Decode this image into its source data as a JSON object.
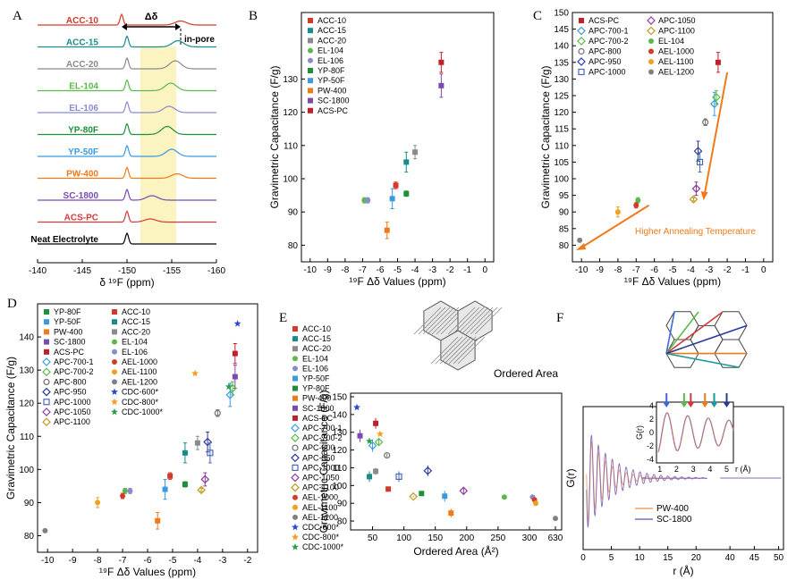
{
  "panels": {
    "A": {
      "letter": "A",
      "delta_label": "Δδ",
      "inpore_label": "in-pore",
      "xlabel": "δ ¹⁹F (ppm)",
      "xticks": [
        "-140",
        "-145",
        "-150",
        "-155",
        "-160"
      ],
      "traces": [
        {
          "label": "ACC-10",
          "color": "#d43a2a",
          "peak": -149.4,
          "inpore": -156.0,
          "amp": 0.45
        },
        {
          "label": "ACC-15",
          "color": "#1a8a8a",
          "peak": -150.0,
          "inpore": -155.7,
          "amp": 0.7
        },
        {
          "label": "ACC-20",
          "color": "#8a8a8a",
          "peak": -150.0,
          "inpore": -155.4,
          "amp": 0.9
        },
        {
          "label": "EL-104",
          "color": "#5cb84a",
          "peak": -150.0,
          "inpore": -154.9,
          "amp": 0.85
        },
        {
          "label": "EL-106",
          "color": "#8a8ad0",
          "peak": -150.0,
          "inpore": -154.7,
          "amp": 0.7
        },
        {
          "label": "YP-80F",
          "color": "#1e8f3a",
          "peak": -150.0,
          "inpore": -154.5,
          "amp": 0.9
        },
        {
          "label": "YP-50F",
          "color": "#3a9ae0",
          "peak": -150.0,
          "inpore": -155.0,
          "amp": 0.8
        },
        {
          "label": "PW-400",
          "color": "#f07a1a",
          "peak": -150.0,
          "inpore": -155.6,
          "amp": 0.5
        },
        {
          "label": "SC-1800",
          "color": "#7a4ab0",
          "peak": -150.0,
          "inpore": -152.8,
          "amp": 0.5
        },
        {
          "label": "ACS-PC",
          "color": "#d43a3a",
          "peak": -150.0,
          "inpore": -152.6,
          "amp": 0.35
        },
        {
          "label": "Neat Electrolyte",
          "color": "#000000",
          "peak": -150.0,
          "inpore": -150.0,
          "amp": 0
        }
      ]
    },
    "B": {
      "letter": "B",
      "xlabel": "¹⁹F Δδ Values (ppm)",
      "ylabel": "Gravimetric Capacitance (F/g)",
      "xticks": [
        "-10",
        "-9",
        "-8",
        "-7",
        "-6",
        "-5",
        "-4",
        "-3",
        "-2",
        "-1",
        "0"
      ],
      "yticks": [
        "80",
        "90",
        "100",
        "110",
        "120",
        "130"
      ]
    },
    "C": {
      "letter": "C",
      "xlabel": "¹⁹F Δδ Values (ppm)",
      "ylabel": "Gravimetric Capacitance (F/g)",
      "xticks": [
        "-10",
        "-9",
        "-8",
        "-7",
        "-6",
        "-5",
        "-4",
        "-3",
        "-2",
        "-1",
        "0"
      ],
      "yticks": [
        "80",
        "85",
        "90",
        "95",
        "100",
        "105",
        "110",
        "115",
        "120",
        "125",
        "130",
        "135",
        "140",
        "145",
        "150"
      ],
      "annotation": "Higher Annealing Temperature"
    },
    "D": {
      "letter": "D",
      "xlabel": "¹⁹F Δδ Values (ppm)",
      "ylabel": "Gravimetric Capacitance (F/g)",
      "xticks": [
        "-10",
        "-9",
        "-8",
        "-7",
        "-6",
        "-5",
        "-4",
        "-3",
        "-2"
      ],
      "yticks": [
        "80",
        "90",
        "100",
        "110",
        "120",
        "130",
        "140"
      ]
    },
    "E": {
      "letter": "E",
      "xlabel": "Ordered Area (Å²)",
      "ylabel": "Gravimetric Capacitance (F/g)",
      "xticks": [
        "50",
        "100",
        "150",
        "200",
        "250",
        "300",
        "630"
      ],
      "yticks": [
        "80",
        "90",
        "100",
        "110",
        "120",
        "130",
        "140",
        "150"
      ],
      "inset_label": "Ordered Area"
    },
    "F": {
      "letter": "F",
      "xlabel": "r (Å)",
      "ylabel": "G(r)",
      "xticks": [
        "0",
        "5",
        "10",
        "15",
        "20",
        "40",
        "45",
        "50"
      ],
      "yticks": [
        "-4",
        "-2",
        "0",
        "2",
        "4"
      ],
      "inset_xlabel": "r (Å)",
      "inset_ylabel": "G(r)",
      "inset_xticks": [
        "1",
        "2",
        "3",
        "4",
        "5"
      ],
      "inset_yticks": [
        "-4",
        "-2",
        "0",
        "2",
        "4"
      ],
      "legend": [
        {
          "label": "PW-400",
          "color": "#f5a050"
        },
        {
          "label": "SC-1800",
          "color": "#8a6ab8"
        }
      ],
      "arrow_colors": [
        "#3a6ad8",
        "#5cb84a",
        "#d43a3a",
        "#f07a1a",
        "#1a9a9a",
        "#2a3a9a"
      ]
    }
  },
  "chart_data": [
    {
      "type": "line",
      "panel": "A",
      "xlabel": "δ ¹⁹F (ppm)",
      "xlim": [
        -140,
        -160
      ],
      "series": [
        {
          "name": "ACC-10",
          "peak_ppm": -149.4,
          "inpore_ppm": -156.0
        },
        {
          "name": "ACC-15",
          "peak_ppm": -150.0,
          "inpore_ppm": -155.7
        },
        {
          "name": "ACC-20",
          "peak_ppm": -150.0,
          "inpore_ppm": -155.4
        },
        {
          "name": "EL-104",
          "peak_ppm": -150.0,
          "inpore_ppm": -154.9
        },
        {
          "name": "EL-106",
          "peak_ppm": -150.0,
          "inpore_ppm": -154.7
        },
        {
          "name": "YP-80F",
          "peak_ppm": -150.0,
          "inpore_ppm": -154.5
        },
        {
          "name": "YP-50F",
          "peak_ppm": -150.0,
          "inpore_ppm": -155.0
        },
        {
          "name": "PW-400",
          "peak_ppm": -150.0,
          "inpore_ppm": -155.6
        },
        {
          "name": "SC-1800",
          "peak_ppm": -150.0,
          "inpore_ppm": -152.8
        },
        {
          "name": "ACS-PC",
          "peak_ppm": -150.0,
          "inpore_ppm": -152.6
        },
        {
          "name": "Neat Electrolyte",
          "peak_ppm": -150.0
        }
      ]
    },
    {
      "type": "scatter",
      "panel": "B",
      "xlabel": "¹⁹F Δδ Values (ppm)",
      "ylabel": "Gravimetric Capacitance (F/g)",
      "xlim": [
        -10.5,
        0.5
      ],
      "ylim": [
        75,
        150
      ],
      "series": [
        {
          "name": "ACC-10",
          "x": -5.1,
          "y": 98,
          "err": 1,
          "color": "#d43a2a",
          "marker": "sq"
        },
        {
          "name": "ACC-15",
          "x": -4.5,
          "y": 105,
          "err": 3,
          "color": "#1a8a8a",
          "marker": "sq"
        },
        {
          "name": "ACC-20",
          "x": -4.0,
          "y": 108,
          "err": 2,
          "color": "#8a8a8a",
          "marker": "sq"
        },
        {
          "name": "EL-104",
          "x": -6.9,
          "y": 93.5,
          "err": 0.8,
          "color": "#5cb84a",
          "marker": "ci"
        },
        {
          "name": "EL-106",
          "x": -6.7,
          "y": 93.5,
          "err": 0.8,
          "color": "#8a8ad0",
          "marker": "ci"
        },
        {
          "name": "YP-80F",
          "x": -4.5,
          "y": 95.5,
          "err": 0.8,
          "color": "#1e8f3a",
          "marker": "sq"
        },
        {
          "name": "YP-50F",
          "x": -5.3,
          "y": 94,
          "err": 3,
          "color": "#3a9ae0",
          "marker": "sq"
        },
        {
          "name": "PW-400",
          "x": -5.6,
          "y": 84.5,
          "err": 2.5,
          "color": "#f07a1a",
          "marker": "sq"
        },
        {
          "name": "SC-1800",
          "x": -2.5,
          "y": 128,
          "err": 3.5,
          "color": "#7a4ab0",
          "marker": "sq"
        },
        {
          "name": "ACS-PC",
          "x": -2.5,
          "y": 135,
          "err": 3,
          "color": "#c0202a",
          "marker": "sq"
        }
      ]
    },
    {
      "type": "scatter",
      "panel": "C",
      "xlabel": "¹⁹F Δδ Values (ppm)",
      "ylabel": "Gravimetric Capacitance (F/g)",
      "xlim": [
        -10.5,
        0.5
      ],
      "ylim": [
        75,
        150
      ],
      "series": [
        {
          "name": "ACS-PC",
          "x": -2.5,
          "y": 135,
          "err": 3,
          "color": "#c0202a",
          "marker": "sq"
        },
        {
          "name": "APC-700-1",
          "x": -2.7,
          "y": 122.5,
          "err": 3.5,
          "color": "#3a9ae0",
          "marker": "od"
        },
        {
          "name": "APC-700-2",
          "x": -2.6,
          "y": 124.5,
          "err": 2,
          "color": "#5cb84a",
          "marker": "od"
        },
        {
          "name": "APC-800",
          "x": -3.2,
          "y": 117,
          "err": 1,
          "color": "#707070",
          "marker": "oc"
        },
        {
          "name": "APC-950",
          "x": -3.6,
          "y": 108.3,
          "err": 3,
          "color": "#2a3aa0",
          "marker": "od"
        },
        {
          "name": "APC-1000",
          "x": -3.5,
          "y": 105,
          "err": 3,
          "color": "#4a6ab8",
          "marker": "os"
        },
        {
          "name": "APC-1050",
          "x": -3.7,
          "y": 97,
          "err": 2,
          "color": "#8a3aa0",
          "marker": "od"
        },
        {
          "name": "APC-1100",
          "x": -3.85,
          "y": 93.8,
          "err": 0.5,
          "color": "#c09a20",
          "marker": "od"
        },
        {
          "name": "EL-104",
          "x": -6.9,
          "y": 93.5,
          "err": 0.8,
          "color": "#5cb84a",
          "marker": "ci"
        },
        {
          "name": "AEL-1000",
          "x": -7.0,
          "y": 92,
          "err": 0.8,
          "color": "#d43a2a",
          "marker": "ci"
        },
        {
          "name": "AEL-1100",
          "x": -8.0,
          "y": 90,
          "err": 1.5,
          "color": "#f0a020",
          "marker": "ci"
        },
        {
          "name": "AEL-1200",
          "x": -10.1,
          "y": 81.5,
          "err": 0.5,
          "color": "#808080",
          "marker": "ci"
        }
      ]
    },
    {
      "type": "scatter",
      "panel": "D",
      "xlabel": "¹⁹F Δδ Values (ppm)",
      "ylabel": "Gravimetric Capacitance (F/g)",
      "xlim": [
        -10.4,
        -1.6
      ],
      "ylim": [
        75,
        150
      ],
      "series": [
        {
          "name": "YP-80F",
          "x": -4.5,
          "y": 95.5,
          "err": 0.8,
          "color": "#1e8f3a",
          "marker": "sq"
        },
        {
          "name": "YP-50F",
          "x": -5.3,
          "y": 94,
          "err": 3,
          "color": "#3a9ae0",
          "marker": "sq"
        },
        {
          "name": "PW-400",
          "x": -5.6,
          "y": 84.5,
          "err": 2.5,
          "color": "#f07a1a",
          "marker": "sq"
        },
        {
          "name": "SC-1800",
          "x": -2.5,
          "y": 128,
          "err": 3.5,
          "color": "#7a4ab0",
          "marker": "sq"
        },
        {
          "name": "ACS-PC",
          "x": -2.5,
          "y": 135,
          "err": 3,
          "color": "#c0202a",
          "marker": "sq"
        },
        {
          "name": "APC-700-1",
          "x": -2.7,
          "y": 122.5,
          "err": 3.5,
          "color": "#3a9ae0",
          "marker": "od"
        },
        {
          "name": "APC-700-2",
          "x": -2.6,
          "y": 124.5,
          "err": 2,
          "color": "#5cb84a",
          "marker": "od"
        },
        {
          "name": "APC-800",
          "x": -3.2,
          "y": 117,
          "err": 1,
          "color": "#707070",
          "marker": "oc"
        },
        {
          "name": "APC-950",
          "x": -3.6,
          "y": 108.3,
          "err": 3,
          "color": "#2a3aa0",
          "marker": "od"
        },
        {
          "name": "APC-1000",
          "x": -3.5,
          "y": 105,
          "err": 3,
          "color": "#4a6ab8",
          "marker": "os"
        },
        {
          "name": "APC-1050",
          "x": -3.7,
          "y": 97,
          "err": 2,
          "color": "#8a3aa0",
          "marker": "od"
        },
        {
          "name": "APC-1100",
          "x": -3.85,
          "y": 93.8,
          "err": 0.5,
          "color": "#c09a20",
          "marker": "od"
        },
        {
          "name": "ACC-10",
          "x": -5.1,
          "y": 98,
          "err": 1,
          "color": "#d43a2a",
          "marker": "sq"
        },
        {
          "name": "ACC-15",
          "x": -4.5,
          "y": 105,
          "err": 3,
          "color": "#1a8a8a",
          "marker": "sq"
        },
        {
          "name": "ACC-20",
          "x": -4.0,
          "y": 108,
          "err": 2,
          "color": "#8a8a8a",
          "marker": "sq"
        },
        {
          "name": "EL-104",
          "x": -6.9,
          "y": 93.5,
          "err": 0.8,
          "color": "#5cb84a",
          "marker": "ci"
        },
        {
          "name": "EL-106",
          "x": -6.7,
          "y": 93.5,
          "err": 0.8,
          "color": "#8a8ad0",
          "marker": "ci"
        },
        {
          "name": "AEL-1000",
          "x": -7.0,
          "y": 92,
          "err": 0.8,
          "color": "#d43a2a",
          "marker": "ci"
        },
        {
          "name": "AEL-1100",
          "x": -8.0,
          "y": 90,
          "err": 1.5,
          "color": "#f0a020",
          "marker": "ci"
        },
        {
          "name": "AEL-1200",
          "x": -10.1,
          "y": 81.5,
          "err": 0.5,
          "color": "#808080",
          "marker": "ci"
        },
        {
          "name": "CDC-600*",
          "x": -2.4,
          "y": 144,
          "err": 0,
          "color": "#2a4ad0",
          "marker": "st"
        },
        {
          "name": "CDC-800*",
          "x": -4.1,
          "y": 129,
          "err": 0,
          "color": "#f0a020",
          "marker": "st"
        },
        {
          "name": "CDC-1000*",
          "x": -2.75,
          "y": 125,
          "err": 0,
          "color": "#2aa04a",
          "marker": "st"
        }
      ]
    },
    {
      "type": "scatter",
      "panel": "E",
      "xlabel": "Ordered Area (Å²)",
      "ylabel": "Gravimetric Capacitance (F/g)",
      "ylim": [
        75,
        152
      ],
      "series": [
        {
          "name": "ACC-10",
          "x": 75,
          "y": 98,
          "err": 1,
          "color": "#d43a2a",
          "marker": "sq"
        },
        {
          "name": "ACC-15",
          "x": 45,
          "y": 105,
          "err": 3,
          "color": "#1a8a8a",
          "marker": "sq"
        },
        {
          "name": "ACC-20",
          "x": 55,
          "y": 108,
          "err": 2,
          "color": "#8a8a8a",
          "marker": "sq"
        },
        {
          "name": "EL-104",
          "x": 260,
          "y": 93.5,
          "err": 0.8,
          "color": "#5cb84a",
          "marker": "ci"
        },
        {
          "name": "EL-106",
          "x": 305,
          "y": 93.5,
          "err": 0.8,
          "color": "#8a8ad0",
          "marker": "ci"
        },
        {
          "name": "YP-50F",
          "x": 165,
          "y": 94,
          "err": 3,
          "color": "#3a9ae0",
          "marker": "sq"
        },
        {
          "name": "YP-80F",
          "x": 128,
          "y": 95.5,
          "err": 0.8,
          "color": "#1e8f3a",
          "marker": "sq"
        },
        {
          "name": "PW-400",
          "x": 175,
          "y": 84.5,
          "err": 2.5,
          "color": "#f07a1a",
          "marker": "sq"
        },
        {
          "name": "SC-1800",
          "x": 30,
          "y": 128,
          "err": 3.5,
          "color": "#7a4ab0",
          "marker": "sq"
        },
        {
          "name": "ACS-PC",
          "x": 55,
          "y": 135,
          "err": 3,
          "color": "#c0202a",
          "marker": "sq"
        },
        {
          "name": "APC-700-1",
          "x": 50,
          "y": 122.5,
          "err": 3.5,
          "color": "#3a9ae0",
          "marker": "od"
        },
        {
          "name": "APC-700-2",
          "x": 60,
          "y": 124.5,
          "err": 2,
          "color": "#5cb84a",
          "marker": "od"
        },
        {
          "name": "APC-800",
          "x": 73,
          "y": 117,
          "err": 1,
          "color": "#707070",
          "marker": "oc"
        },
        {
          "name": "APC-950",
          "x": 138,
          "y": 108.3,
          "err": 3,
          "color": "#2a3aa0",
          "marker": "od"
        },
        {
          "name": "APC-1000",
          "x": 92,
          "y": 105,
          "err": 3,
          "color": "#4a6ab8",
          "marker": "os"
        },
        {
          "name": "APC-1050",
          "x": 195,
          "y": 97,
          "err": 2,
          "color": "#8a3aa0",
          "marker": "od"
        },
        {
          "name": "APC-1100",
          "x": 115,
          "y": 93.8,
          "err": 0.5,
          "color": "#c09a20",
          "marker": "od"
        },
        {
          "name": "AEL-1000",
          "x": 308,
          "y": 92,
          "err": 0.8,
          "color": "#d43a2a",
          "marker": "ci"
        },
        {
          "name": "AEL-1100",
          "x": 310,
          "y": 90,
          "err": 1.5,
          "color": "#f0a020",
          "marker": "ci"
        },
        {
          "name": "AEL-1200",
          "x": 630,
          "y": 81.5,
          "err": 0.5,
          "color": "#808080",
          "marker": "ci"
        },
        {
          "name": "CDC-600*",
          "x": 25,
          "y": 144,
          "err": 0,
          "color": "#2a4ad0",
          "marker": "st"
        },
        {
          "name": "CDC-800*",
          "x": 62,
          "y": 129,
          "err": 0,
          "color": "#f0a020",
          "marker": "st"
        },
        {
          "name": "CDC-1000*",
          "x": 45,
          "y": 125,
          "err": 0,
          "color": "#2aa04a",
          "marker": "st"
        }
      ]
    },
    {
      "type": "line",
      "panel": "F",
      "xlabel": "r (Å)",
      "ylabel": "G(r)",
      "series": [
        {
          "name": "PW-400"
        },
        {
          "name": "SC-1800"
        }
      ]
    }
  ]
}
